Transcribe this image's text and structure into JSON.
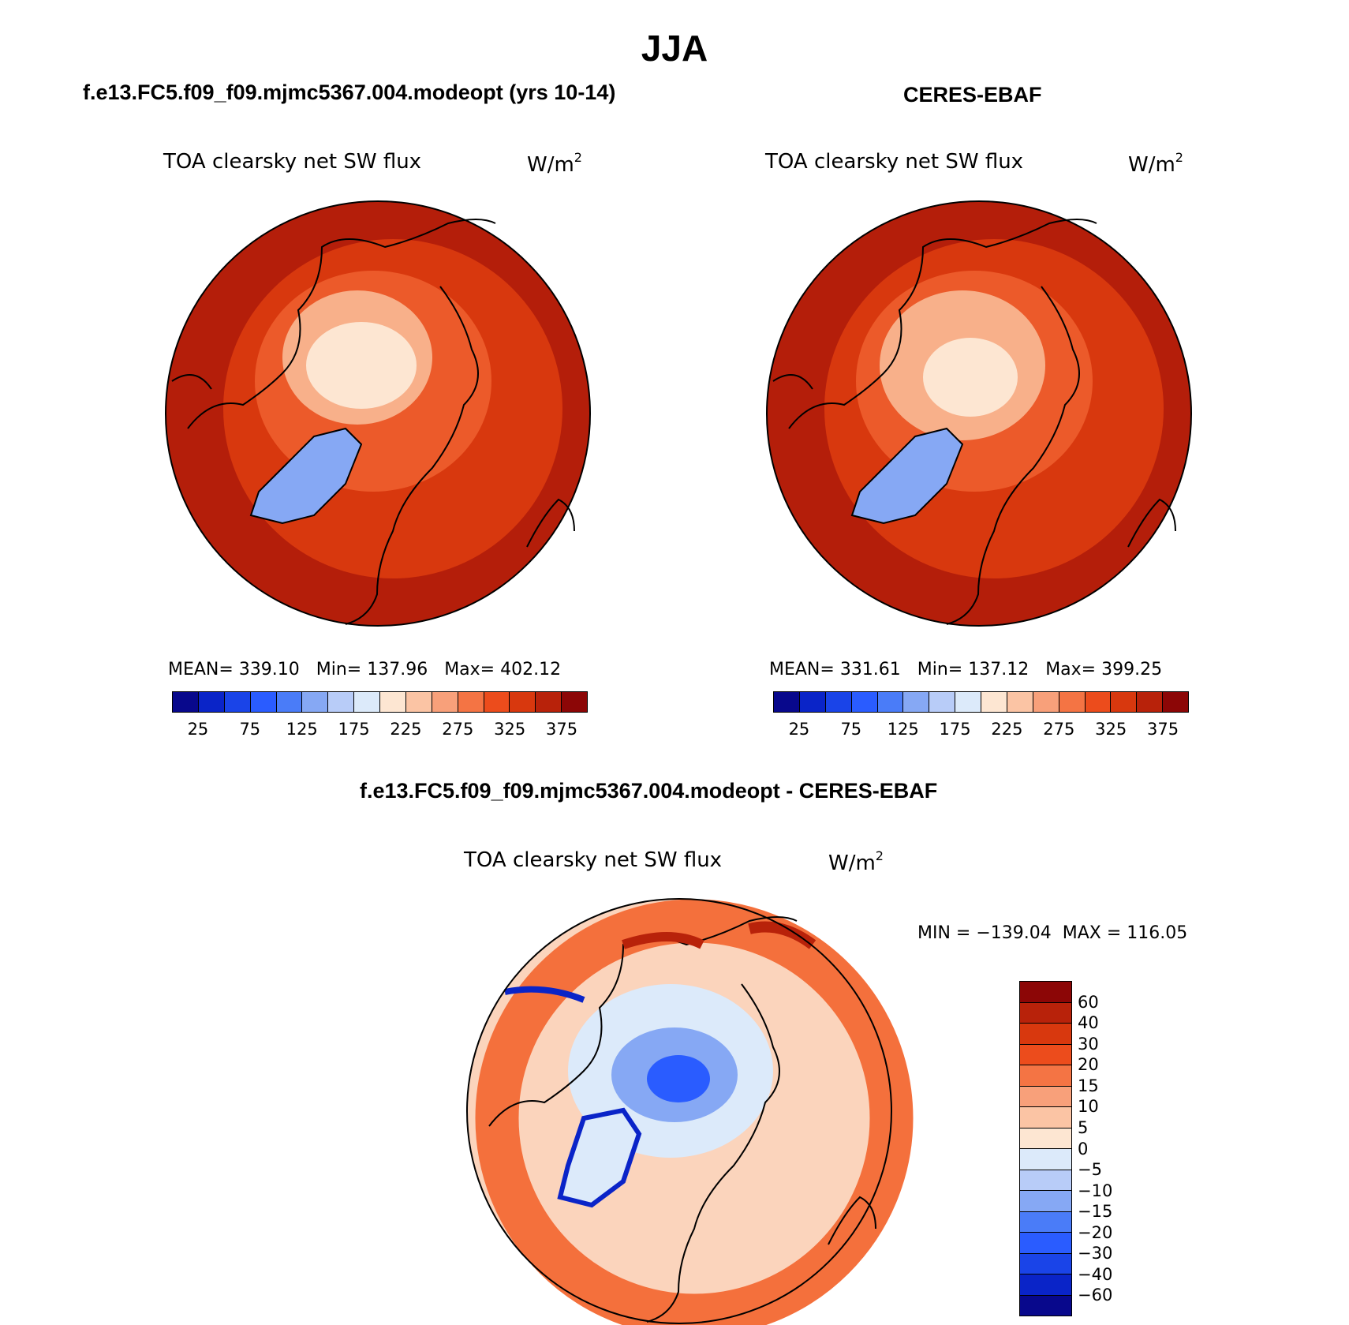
{
  "figure": {
    "title": "JJA"
  },
  "panels": [
    {
      "title": "f.e13.FC5.f09_f09.mjmc5367.004.modeopt (yrs 10-14)",
      "variable": "TOA clearsky net SW flux",
      "units": "W/m",
      "units_sup": "2",
      "stats": "MEAN= 339.10   Min= 137.96   Max= 402.12",
      "stats_values": {
        "mean": 339.1,
        "min": 137.96,
        "max": 402.12
      }
    },
    {
      "title": "CERES-EBAF",
      "variable": "TOA clearsky net SW flux",
      "units": "W/m",
      "units_sup": "2",
      "stats": "MEAN= 331.61   Min= 137.12   Max= 399.25",
      "stats_values": {
        "mean": 331.61,
        "min": 137.12,
        "max": 399.25
      }
    },
    {
      "title": "f.e13.FC5.f09_f09.mjmc5367.004.modeopt - CERES-EBAF",
      "variable": "TOA clearsky net SW flux",
      "units": "W/m",
      "units_sup": "2",
      "stats": "MIN = −139.04  MAX = 116.05",
      "stats_values": {
        "min": -139.04,
        "max": 116.05
      }
    }
  ],
  "colorbar_abs": {
    "colors": [
      "#08088c",
      "#0a24c8",
      "#1a44e8",
      "#2a5cff",
      "#4a7cf8",
      "#86a8f4",
      "#b8ccf8",
      "#dceafa",
      "#fde6d2",
      "#fbc4a4",
      "#f8a07a",
      "#f47444",
      "#ec4c1c",
      "#d8380e",
      "#b8220a",
      "#8c0606"
    ],
    "tick_labels": [
      "25",
      "75",
      "125",
      "175",
      "225",
      "275",
      "325",
      "375"
    ]
  },
  "colorbar_diff": {
    "colors": [
      "#8c0606",
      "#b8220a",
      "#d8380e",
      "#ec4c1c",
      "#f47444",
      "#f8a07a",
      "#fbc4a4",
      "#fde6d2",
      "#dceafa",
      "#b8ccf8",
      "#86a8f4",
      "#4a7cf8",
      "#2a5cff",
      "#1a44e8",
      "#0a24c8",
      "#08088c"
    ],
    "tick_labels": [
      "60",
      "40",
      "30",
      "20",
      "15",
      "10",
      "5",
      "0",
      "−5",
      "−10",
      "−15",
      "−20",
      "−30",
      "−40",
      "−60"
    ]
  },
  "map_colors": {
    "outer": "#b41e0a",
    "mid": "#d8380e",
    "ring": "#ec5a2a",
    "inner": "#f8b08a",
    "core": "#fde6d2",
    "greenland": "#86a8f4",
    "coast": "#000000",
    "diff_bg": "#fbd4bc",
    "diff_ring": "#f4703c",
    "diff_center": "#b8ccf8",
    "diff_blue": "#2a5cff"
  }
}
